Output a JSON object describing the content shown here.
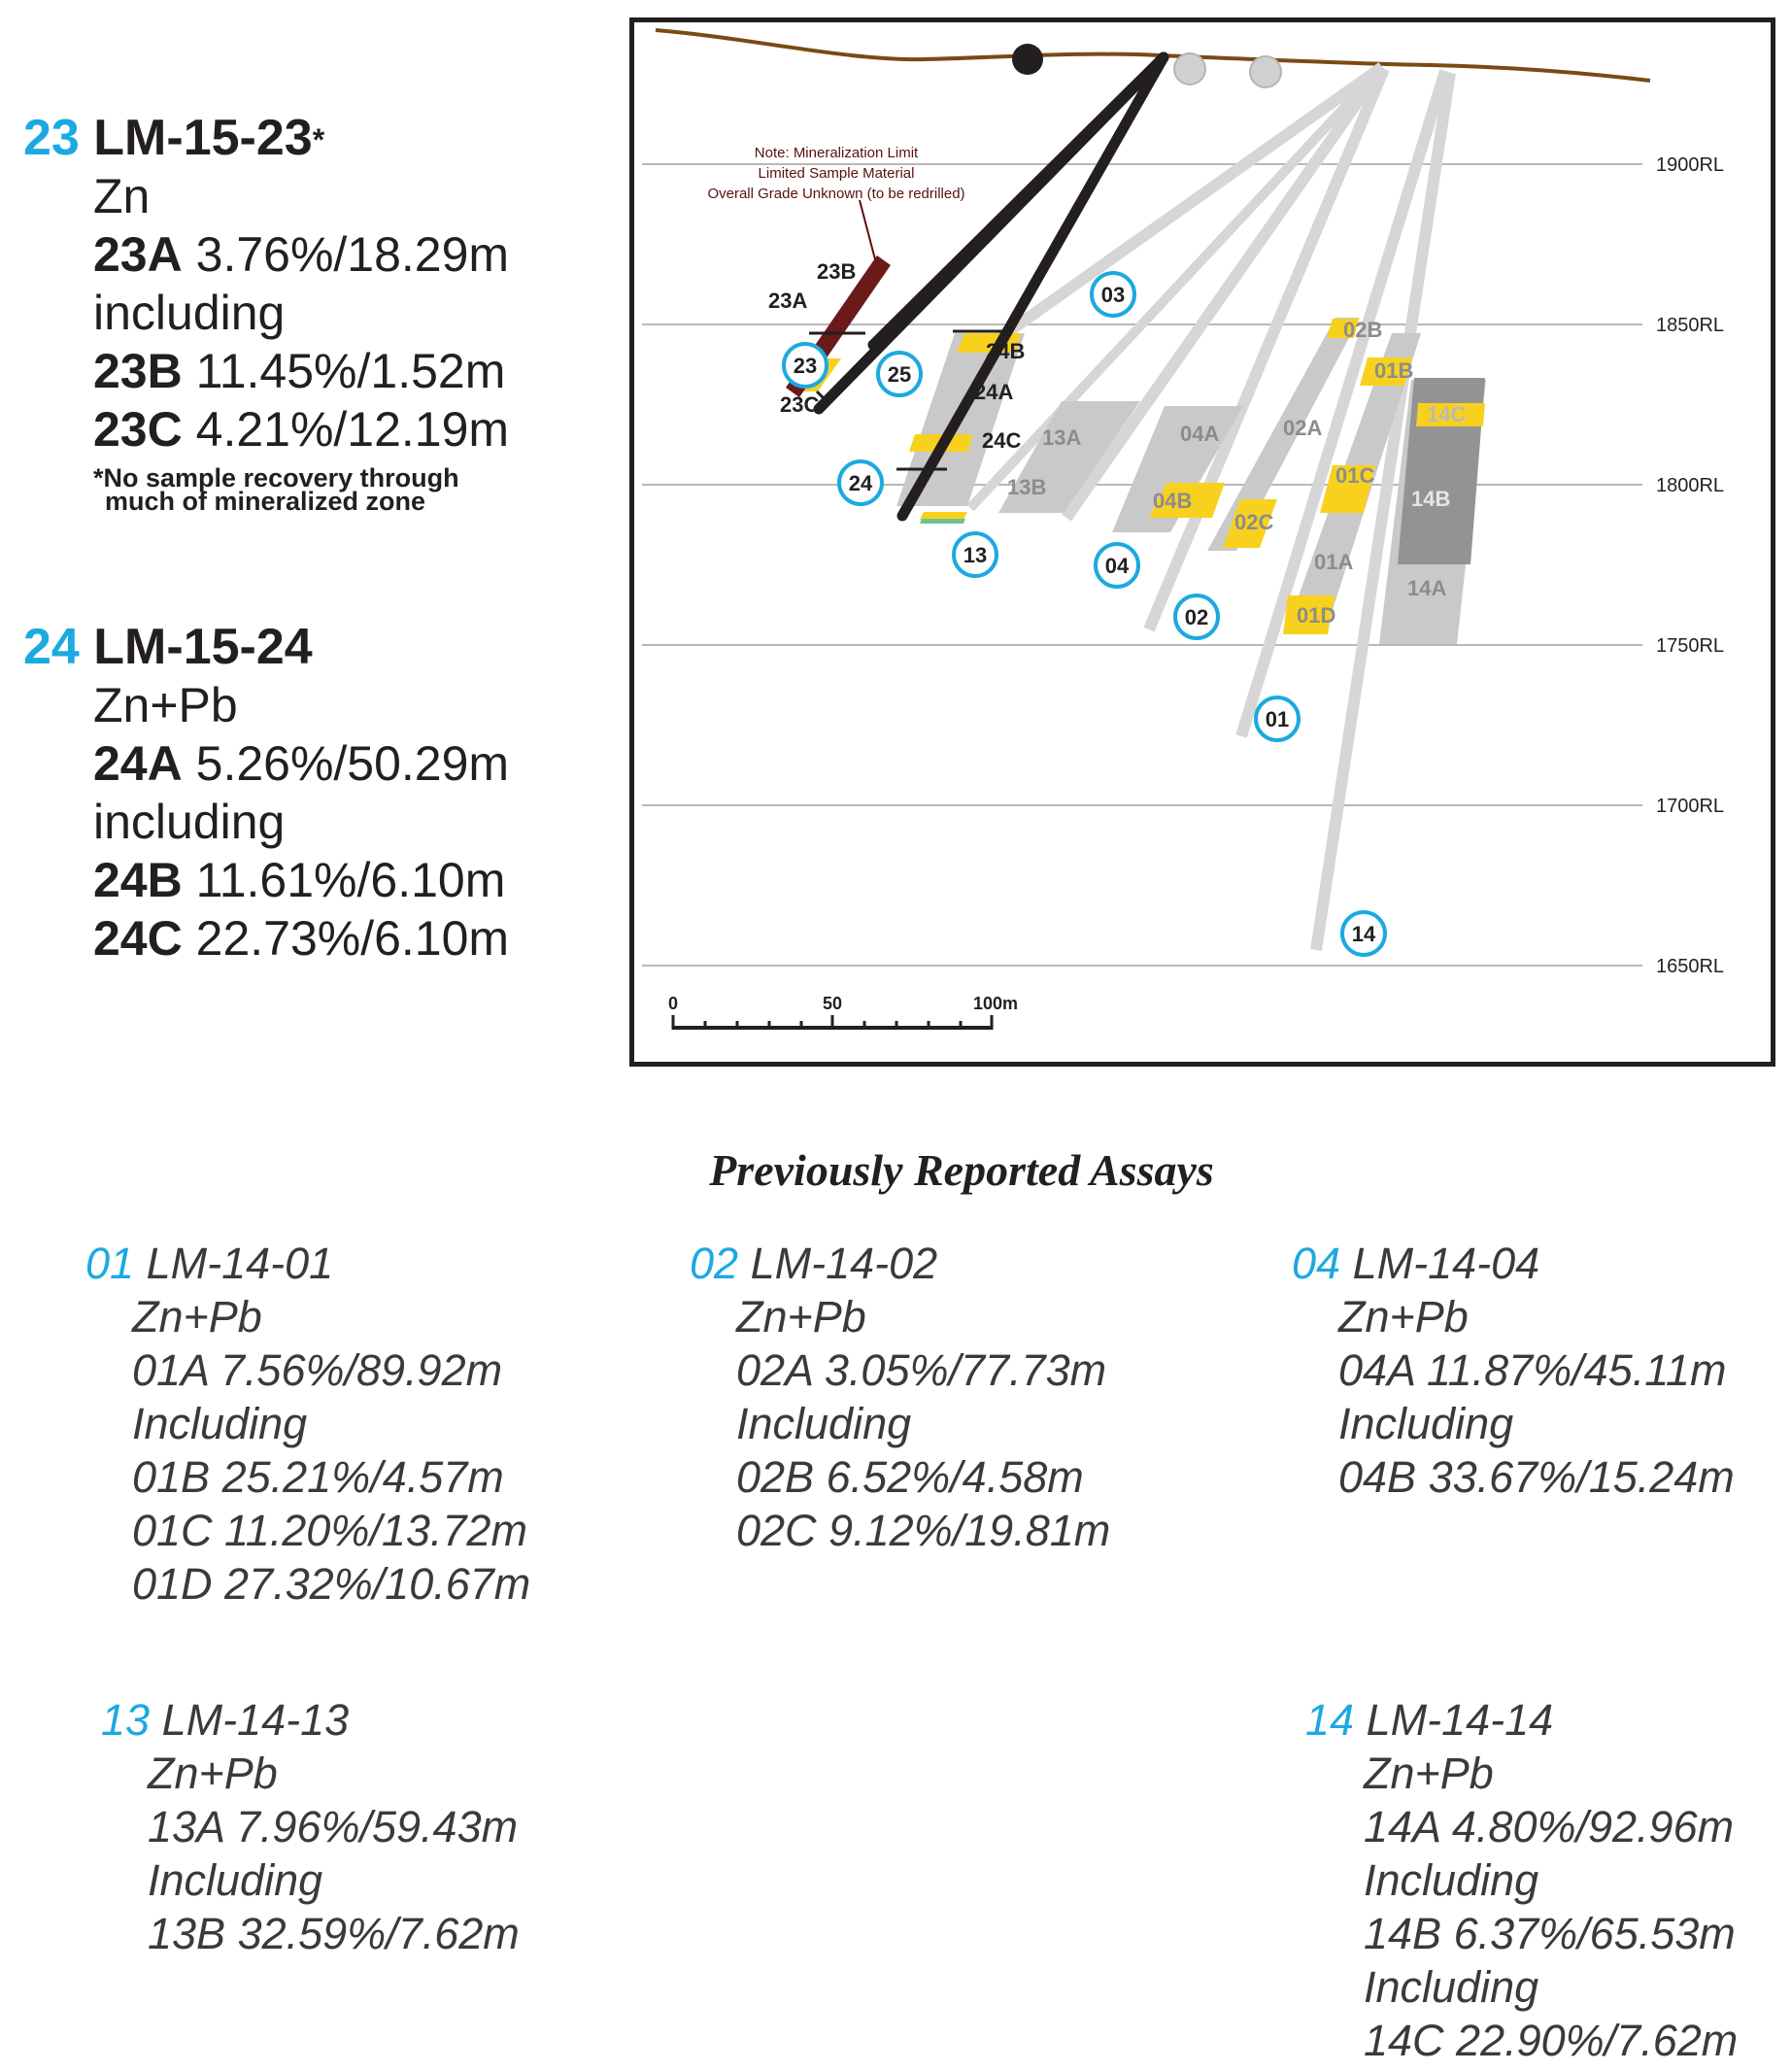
{
  "holes_new": [
    {
      "num": "23",
      "name": "LM-15-23",
      "marker": "*",
      "metal": "Zn",
      "lines": [
        {
          "label": "23A",
          "value": "3.76%/18.29m"
        },
        {
          "label": "",
          "value": "including"
        },
        {
          "label": "23B",
          "value": "11.45%/1.52m"
        },
        {
          "label": "23C",
          "value": "4.21%/12.19m"
        }
      ],
      "note_line1": "*No sample recovery through",
      "note_line2": "much of mineralized zone"
    },
    {
      "num": "24",
      "name": "LM-15-24",
      "marker": "",
      "metal": "Zn+Pb",
      "lines": [
        {
          "label": "24A",
          "value": "5.26%/50.29m"
        },
        {
          "label": "",
          "value": "including"
        },
        {
          "label": "24B",
          "value": "11.61%/6.10m"
        },
        {
          "label": "24C",
          "value": "22.73%/6.10m"
        }
      ]
    }
  ],
  "section": {
    "rl_labels": [
      "1900RL",
      "1850RL",
      "1800RL",
      "1750RL",
      "1700RL",
      "1650RL"
    ],
    "scale_labels": [
      "0",
      "50",
      "100m"
    ],
    "note": [
      "Note: Mineralization Limit",
      "Limited Sample Material",
      "Overall Grade Unknown (to be redrilled)"
    ],
    "hole_markers": [
      "23",
      "24",
      "25",
      "03",
      "13",
      "04",
      "02",
      "01",
      "14"
    ],
    "intervals": [
      "23A",
      "23B",
      "23C",
      "24A",
      "24B",
      "24C",
      "13A",
      "13B",
      "04A",
      "04B",
      "02A",
      "02B",
      "02C",
      "01A",
      "01B",
      "01C",
      "01D",
      "14A",
      "14B",
      "14C"
    ],
    "colors": {
      "topography": "#7a4a14",
      "new_hole": "#231f20",
      "old_hole": "#d4d4d4",
      "high_grade": "#f7d11e",
      "marker_ring": "#1ba9e1",
      "note": "#5a1010"
    }
  },
  "previous_title": "Previously Reported Assays",
  "previous": [
    {
      "num": "01",
      "name": "LM-14-01",
      "lines": [
        "Zn+Pb",
        "01A 7.56%/89.92m",
        "Including",
        "01B 25.21%/4.57m",
        "01C 11.20%/13.72m",
        "01D 27.32%/10.67m"
      ]
    },
    {
      "num": "02",
      "name": "LM-14-02",
      "lines": [
        "Zn+Pb",
        "02A 3.05%/77.73m",
        "Including",
        "02B 6.52%/4.58m",
        "02C 9.12%/19.81m"
      ]
    },
    {
      "num": "04",
      "name": "LM-14-04",
      "lines": [
        "Zn+Pb",
        "04A 11.87%/45.11m",
        "Including",
        "04B 33.67%/15.24m"
      ]
    },
    {
      "num": "13",
      "name": "LM-14-13",
      "lines": [
        "Zn+Pb",
        "13A 7.96%/59.43m",
        "Including",
        "13B 32.59%/7.62m"
      ]
    },
    {
      "num": "14",
      "name": "LM-14-14",
      "lines": [
        "Zn+Pb",
        "14A 4.80%/92.96m",
        "Including",
        "14B 6.37%/65.53m",
        "Including",
        "14C 22.90%/7.62m"
      ]
    }
  ]
}
